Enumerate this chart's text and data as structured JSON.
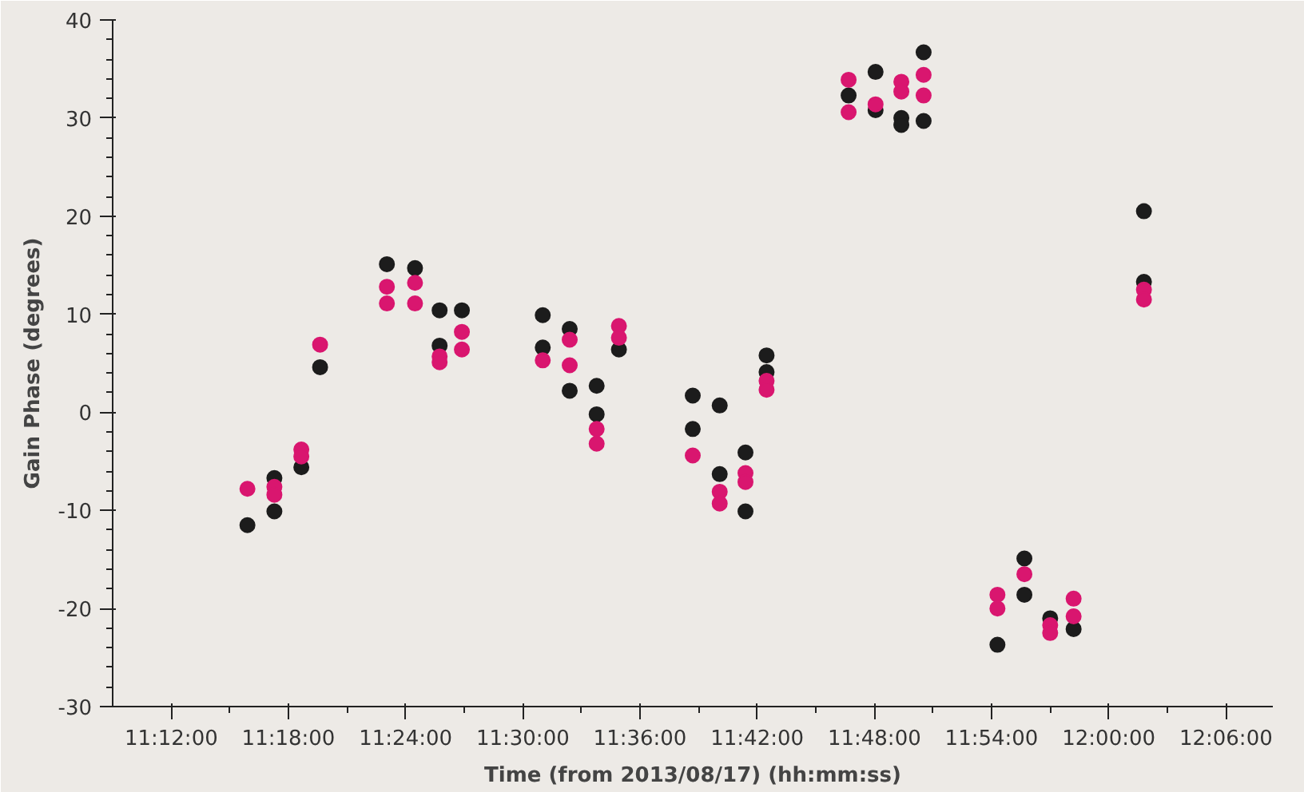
{
  "chart_data": {
    "type": "scatter",
    "xlabel": "Time (from 2013/08/17) (hh:mm:ss)",
    "ylabel": "Gain Phase (degrees)",
    "xlim": [
      11.15,
      12.14
    ],
    "ylim": [
      -30,
      40
    ],
    "xticks": [
      {
        "value": 11.2,
        "label": "11:12:00"
      },
      {
        "value": 11.25,
        "label": null
      },
      {
        "value": 11.3,
        "label": "11:18:00"
      },
      {
        "value": 11.35,
        "label": null
      },
      {
        "value": 11.4,
        "label": "11:24:00"
      },
      {
        "value": 11.45,
        "label": null
      },
      {
        "value": 11.5,
        "label": "11:30:00"
      },
      {
        "value": 11.55,
        "label": null
      },
      {
        "value": 11.6,
        "label": "11:36:00"
      },
      {
        "value": 11.65,
        "label": null
      },
      {
        "value": 11.7,
        "label": "11:42:00"
      },
      {
        "value": 11.75,
        "label": null
      },
      {
        "value": 11.8,
        "label": "11:48:00"
      },
      {
        "value": 11.85,
        "label": null
      },
      {
        "value": 11.9,
        "label": "11:54:00"
      },
      {
        "value": 11.95,
        "label": null
      },
      {
        "value": 12.0,
        "label": "12:00:00"
      },
      {
        "value": 12.05,
        "label": null
      },
      {
        "value": 12.1,
        "label": "12:06:00"
      }
    ],
    "yticks": [
      -30,
      {
        "value": -28,
        "label": null
      },
      {
        "value": -26,
        "label": null
      },
      {
        "value": -24,
        "label": null
      },
      {
        "value": -22,
        "label": null
      },
      -20,
      {
        "value": -18,
        "label": null
      },
      {
        "value": -16,
        "label": null
      },
      {
        "value": -14,
        "label": null
      },
      {
        "value": -12,
        "label": null
      },
      -10,
      {
        "value": -8,
        "label": null
      },
      {
        "value": -6,
        "label": null
      },
      {
        "value": -4,
        "label": null
      },
      {
        "value": -2,
        "label": null
      },
      0,
      {
        "value": 2,
        "label": null
      },
      {
        "value": 4,
        "label": null
      },
      {
        "value": 6,
        "label": null
      },
      {
        "value": 8,
        "label": null
      },
      10,
      {
        "value": 12,
        "label": null
      },
      {
        "value": 14,
        "label": null
      },
      {
        "value": 16,
        "label": null
      },
      {
        "value": 18,
        "label": null
      },
      20,
      {
        "value": 22,
        "label": null
      },
      {
        "value": 24,
        "label": null
      },
      {
        "value": 26,
        "label": null
      },
      {
        "value": 28,
        "label": null
      },
      30,
      {
        "value": 32,
        "label": null
      },
      {
        "value": 34,
        "label": null
      },
      {
        "value": 36,
        "label": null
      },
      {
        "value": 38,
        "label": null
      },
      40
    ],
    "grid": false,
    "marker": "circle",
    "series": [
      {
        "color": "#1c1c1c",
        "x": [
          11.265,
          11.288,
          11.288,
          11.311,
          11.327,
          11.384,
          11.408,
          11.429,
          11.429,
          11.448,
          11.517,
          11.517,
          11.54,
          11.54,
          11.563,
          11.563,
          11.582,
          11.645,
          11.645,
          11.668,
          11.668,
          11.69,
          11.69,
          11.708,
          11.708,
          11.778,
          11.801,
          11.801,
          11.823,
          11.823,
          11.842,
          11.842,
          11.905,
          11.928,
          11.928,
          11.95,
          11.97,
          12.03,
          12.03
        ],
        "values": [
          -11.5,
          -6.7,
          -10.1,
          -5.6,
          4.6,
          15.1,
          14.7,
          10.4,
          6.8,
          10.4,
          9.9,
          6.6,
          8.5,
          2.2,
          2.7,
          -0.2,
          6.4,
          1.7,
          -1.7,
          0.7,
          -6.3,
          -4.1,
          -10.1,
          5.8,
          4.1,
          32.3,
          34.7,
          30.8,
          30.0,
          29.3,
          36.7,
          29.7,
          -23.7,
          -14.9,
          -18.6,
          -21.0,
          -22.1,
          20.5,
          13.3
        ]
      },
      {
        "color": "#d9166f",
        "x": [
          11.265,
          11.288,
          11.288,
          11.311,
          11.311,
          11.327,
          11.384,
          11.384,
          11.408,
          11.408,
          11.429,
          11.429,
          11.448,
          11.448,
          11.517,
          11.54,
          11.54,
          11.563,
          11.563,
          11.582,
          11.582,
          11.645,
          11.668,
          11.668,
          11.69,
          11.69,
          11.708,
          11.708,
          11.778,
          11.778,
          11.801,
          11.823,
          11.823,
          11.842,
          11.842,
          11.905,
          11.905,
          11.928,
          11.95,
          11.95,
          11.97,
          11.97,
          12.03,
          12.03
        ],
        "values": [
          -7.8,
          -7.6,
          -8.4,
          -3.8,
          -4.5,
          6.9,
          12.8,
          11.1,
          13.2,
          11.1,
          5.7,
          5.1,
          8.2,
          6.4,
          5.3,
          7.4,
          4.8,
          -1.7,
          -3.2,
          8.8,
          7.6,
          -4.4,
          -8.1,
          -9.3,
          -6.2,
          -7.1,
          3.2,
          2.3,
          33.9,
          30.6,
          31.4,
          33.7,
          32.7,
          34.4,
          32.3,
          -18.6,
          -20.0,
          -16.5,
          -21.7,
          -22.5,
          -19.0,
          -20.8,
          12.5,
          11.5
        ]
      }
    ]
  }
}
